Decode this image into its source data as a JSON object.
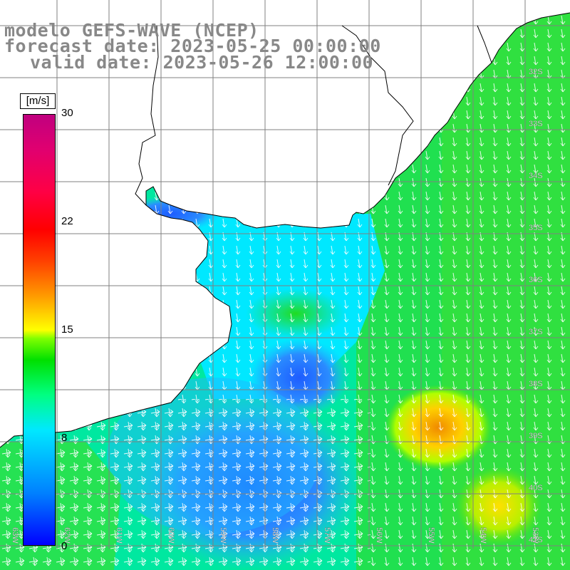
{
  "title": {
    "line1": "modelo GEFS-WAVE (NCEP)",
    "line2": "forecast date: 2023-05-25 00:00:00",
    "line3": "valid date: 2023-05-26 12:00:00"
  },
  "colorbar": {
    "unit": "[m/s]",
    "ticks": [
      "30",
      "22",
      "15",
      "8",
      "0"
    ],
    "tick_values": [
      30,
      22,
      15,
      8,
      0
    ],
    "range": [
      0,
      30
    ]
  },
  "map": {
    "lat_labels": [
      "32S",
      "33S",
      "34S",
      "35S",
      "36S",
      "37S",
      "38S",
      "39S",
      "40S",
      "41S"
    ],
    "lon_labels": [
      "63W",
      "62W",
      "61W",
      "60W",
      "59W",
      "58W",
      "57W",
      "56W",
      "55W",
      "54W",
      "53W"
    ],
    "field": "wind speed",
    "colors": {
      "ocean_low": "#1e64ff",
      "ocean_mid": "#00e0ff",
      "ocean_high": "#00e000",
      "max": "#ff8c00",
      "land": "#ffffff",
      "grid": "#808080",
      "coast": "#000000",
      "arrows": "#ffffff"
    }
  }
}
